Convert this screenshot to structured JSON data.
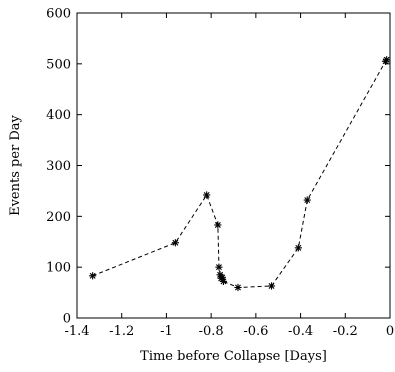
{
  "chart_data": {
    "type": "line",
    "title": "",
    "xlabel": "Time before Collapse [Days]",
    "ylabel": "Events per Day",
    "xlim": [
      -1.4,
      0
    ],
    "ylim": [
      0,
      600
    ],
    "xticks": [
      -1.4,
      -1.2,
      -1.0,
      -0.8,
      -0.6,
      -0.4,
      -0.2,
      0
    ],
    "xtick_labels": [
      "-1.4",
      "-1.2",
      "-1",
      "-0.8",
      "-0.6",
      "-0.4",
      "-0.2",
      "0"
    ],
    "yticks": [
      0,
      100,
      200,
      300,
      400,
      500,
      600
    ],
    "ytick_labels": [
      "0",
      "100",
      "200",
      "300",
      "400",
      "500",
      "600"
    ],
    "grid": false,
    "legend": false,
    "series": [
      {
        "marker": "star",
        "line_style": "dashed",
        "color": "#000000",
        "x": [
          -1.33,
          -0.96,
          -0.82,
          -0.77,
          -0.765,
          -0.76,
          -0.755,
          -0.75,
          -0.745,
          -0.68,
          -0.53,
          -0.41,
          -0.37,
          -0.02,
          -0.015
        ],
        "y": [
          83,
          148,
          242,
          183,
          100,
          85,
          78,
          80,
          72,
          60,
          63,
          138,
          232,
          505,
          508
        ]
      }
    ]
  }
}
